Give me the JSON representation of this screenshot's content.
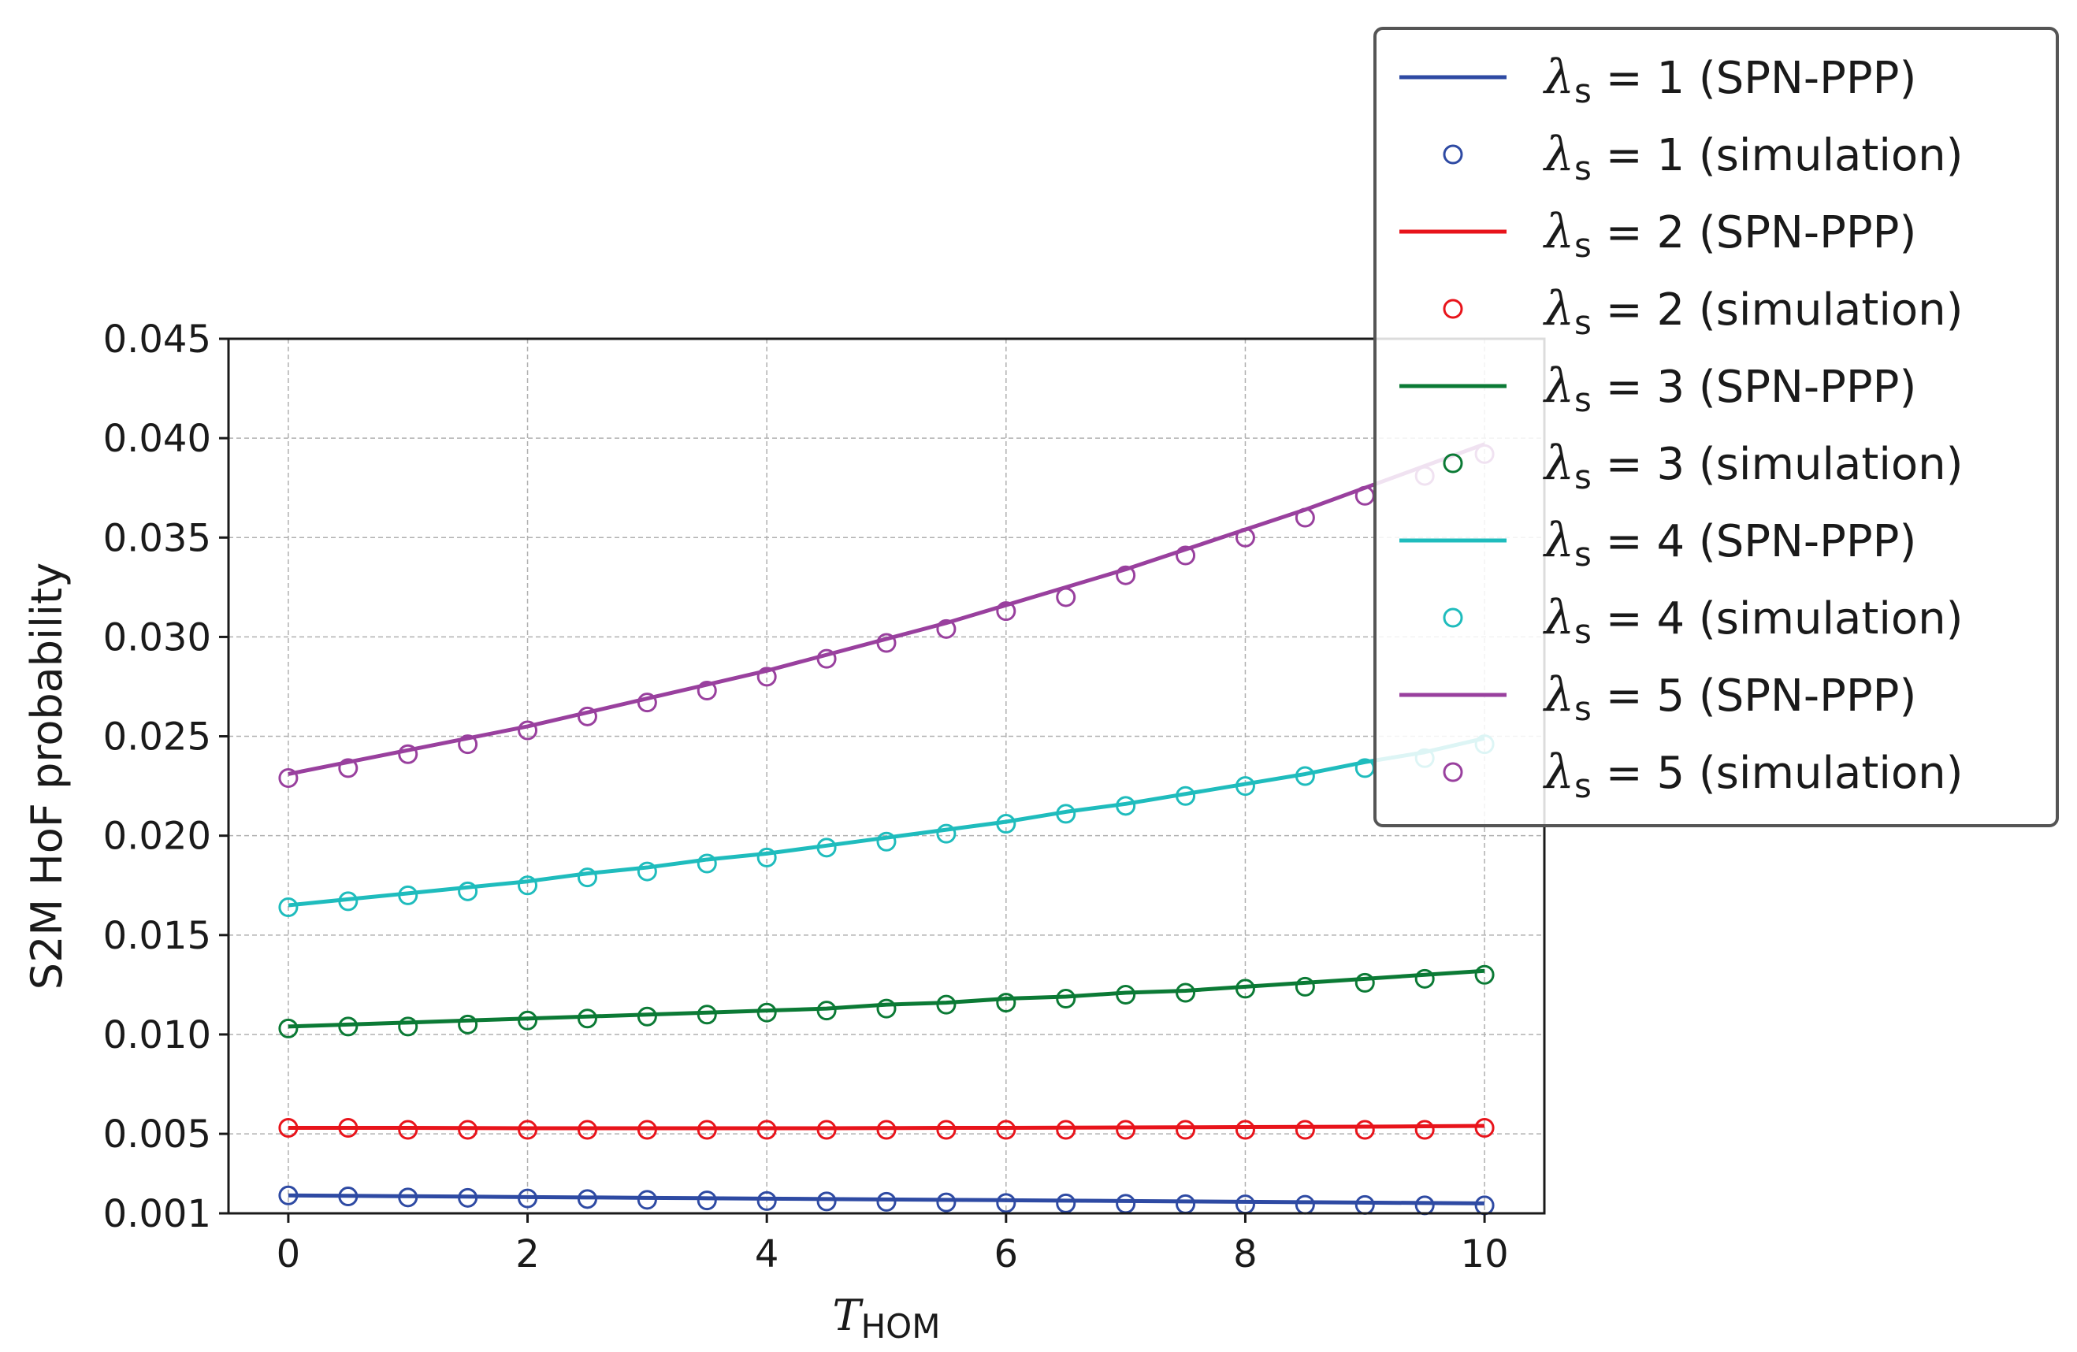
{
  "chart_data": {
    "type": "line",
    "title": "",
    "xlabel": {
      "main": "T",
      "sub": "HOM"
    },
    "ylabel": "S2M HoF probability",
    "xlim": [
      -0.5,
      10.5
    ],
    "ylim": [
      0.001,
      0.045
    ],
    "x_ticks": [
      0,
      2,
      4,
      6,
      8,
      10
    ],
    "x_tick_labels": [
      "0",
      "2",
      "4",
      "6",
      "8",
      "10"
    ],
    "y_ticks": [
      0.001,
      0.005,
      0.01,
      0.015,
      0.02,
      0.025,
      0.03,
      0.035,
      0.04,
      0.045
    ],
    "y_tick_labels": [
      "0.001",
      "0.005",
      "0.010",
      "0.015",
      "0.020",
      "0.025",
      "0.030",
      "0.035",
      "0.040",
      "0.045"
    ],
    "grid": true,
    "legend_position": "top-right",
    "x": [
      0,
      0.5,
      1,
      1.5,
      2,
      2.5,
      3,
      3.5,
      4,
      4.5,
      5,
      5.5,
      6,
      6.5,
      7,
      7.5,
      8,
      8.5,
      9,
      9.5,
      10
    ],
    "series": [
      {
        "lambda": "1",
        "model_label": "SPN-PPP",
        "sim_label": "simulation",
        "color": "#2e4aa3",
        "line": [
          0.0019,
          0.00188,
          0.00186,
          0.00184,
          0.00182,
          0.0018,
          0.00178,
          0.00176,
          0.00174,
          0.00172,
          0.0017,
          0.00168,
          0.00166,
          0.00164,
          0.00162,
          0.0016,
          0.00158,
          0.00156,
          0.00154,
          0.00152,
          0.0015
        ],
        "sim": [
          0.0019,
          0.00185,
          0.0018,
          0.00178,
          0.00175,
          0.00172,
          0.00168,
          0.00165,
          0.00162,
          0.0016,
          0.00158,
          0.00155,
          0.00152,
          0.0015,
          0.00148,
          0.00146,
          0.00145,
          0.00143,
          0.00142,
          0.0014,
          0.0014
        ]
      },
      {
        "lambda": "2",
        "model_label": "SPN-PPP",
        "sim_label": "simulation",
        "color": "#e8141b",
        "line": [
          0.0053,
          0.0053,
          0.0053,
          0.00529,
          0.00528,
          0.00528,
          0.00528,
          0.00528,
          0.00528,
          0.00528,
          0.00529,
          0.0053,
          0.0053,
          0.00531,
          0.00532,
          0.00533,
          0.00534,
          0.00535,
          0.00536,
          0.00538,
          0.0054
        ],
        "sim": [
          0.0053,
          0.0053,
          0.0052,
          0.0052,
          0.0052,
          0.0052,
          0.0052,
          0.0052,
          0.0052,
          0.0052,
          0.0052,
          0.0052,
          0.0052,
          0.0052,
          0.0052,
          0.0052,
          0.0052,
          0.0052,
          0.0052,
          0.0052,
          0.0053
        ]
      },
      {
        "lambda": "3",
        "model_label": "SPN-PPP",
        "sim_label": "simulation",
        "color": "#0b7a35",
        "line": [
          0.0104,
          0.0105,
          0.0106,
          0.0107,
          0.0108,
          0.0109,
          0.011,
          0.0111,
          0.0112,
          0.0113,
          0.0115,
          0.0116,
          0.0118,
          0.0119,
          0.0121,
          0.0122,
          0.0124,
          0.0126,
          0.0128,
          0.013,
          0.0132
        ],
        "sim": [
          0.0103,
          0.0104,
          0.0104,
          0.0105,
          0.0107,
          0.0108,
          0.0109,
          0.011,
          0.0111,
          0.0112,
          0.0113,
          0.0115,
          0.0116,
          0.0118,
          0.012,
          0.0121,
          0.0123,
          0.0124,
          0.0126,
          0.0128,
          0.013
        ]
      },
      {
        "lambda": "4",
        "model_label": "SPN-PPP",
        "sim_label": "simulation",
        "color": "#1fbcbd",
        "line": [
          0.0165,
          0.0168,
          0.0171,
          0.0174,
          0.0177,
          0.0181,
          0.0184,
          0.0188,
          0.0191,
          0.0195,
          0.0199,
          0.0203,
          0.0207,
          0.0212,
          0.0216,
          0.0221,
          0.0226,
          0.0231,
          0.0237,
          0.0242,
          0.0249
        ],
        "sim": [
          0.0164,
          0.0167,
          0.017,
          0.0172,
          0.0175,
          0.0179,
          0.0182,
          0.0186,
          0.0189,
          0.0194,
          0.0197,
          0.0201,
          0.0206,
          0.0211,
          0.0215,
          0.022,
          0.0225,
          0.023,
          0.0234,
          0.0239,
          0.0246
        ]
      },
      {
        "lambda": "5",
        "model_label": "SPN-PPP",
        "sim_label": "simulation",
        "color": "#99409e",
        "line": [
          0.0231,
          0.0237,
          0.0243,
          0.0249,
          0.0255,
          0.0262,
          0.0269,
          0.0276,
          0.0283,
          0.0291,
          0.0299,
          0.0307,
          0.0316,
          0.0325,
          0.0334,
          0.0344,
          0.0354,
          0.0364,
          0.0375,
          0.0386,
          0.0397
        ],
        "sim": [
          0.0229,
          0.0234,
          0.0241,
          0.0246,
          0.0253,
          0.026,
          0.0267,
          0.0273,
          0.028,
          0.0289,
          0.0297,
          0.0304,
          0.0313,
          0.032,
          0.0331,
          0.0341,
          0.035,
          0.036,
          0.0371,
          0.0381,
          0.0392
        ]
      }
    ]
  }
}
